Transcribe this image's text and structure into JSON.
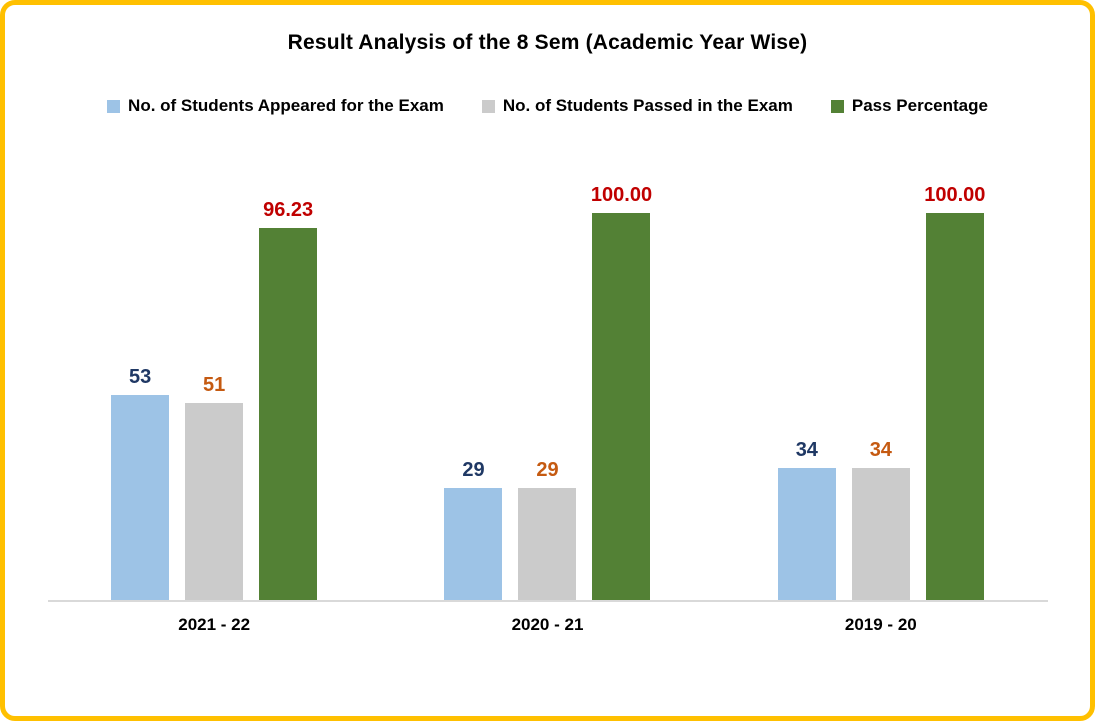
{
  "chart_data": {
    "type": "bar",
    "title": "Result Analysis of the 8 Sem (Academic Year Wise)",
    "categories": [
      "2021 - 22",
      "2020 - 21",
      "2019 - 20"
    ],
    "series": [
      {
        "name": "No. of Students Appeared for the Exam",
        "values": [
          53,
          29,
          34
        ],
        "labels": [
          "53",
          "29",
          "34"
        ],
        "color": "#9DC3E6",
        "label_color": "#1F3864"
      },
      {
        "name": "No. of Students Passed in the Exam",
        "values": [
          51,
          29,
          34
        ],
        "labels": [
          "51",
          "29",
          "34"
        ],
        "color": "#CBCBCB",
        "label_color": "#C55A11"
      },
      {
        "name": "Pass Percentage",
        "values": [
          96.23,
          100,
          100
        ],
        "labels": [
          "96.23",
          "100.00",
          "100.00"
        ],
        "color": "#538135",
        "label_color": "#C00000"
      }
    ],
    "ylim": [
      0,
      100
    ],
    "xlabel": "",
    "ylabel": "",
    "grid": false,
    "legend_position": "top",
    "frame_color": "#FFC000",
    "axis_line_color": "#D9D9D9"
  }
}
